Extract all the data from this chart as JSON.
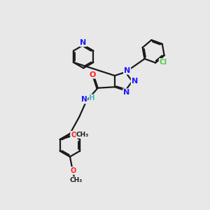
{
  "background_color": "#e8e8e8",
  "bond_color": "#1a1a1a",
  "bond_width": 1.6,
  "atom_colors": {
    "N": "#1a1aff",
    "O": "#ff2020",
    "Cl": "#4dcc4d",
    "C": "#1a1a1a",
    "H": "#44bbbb"
  },
  "font_size_atom": 8.0,
  "font_size_small": 7.0,
  "font_size_label": 7.5
}
